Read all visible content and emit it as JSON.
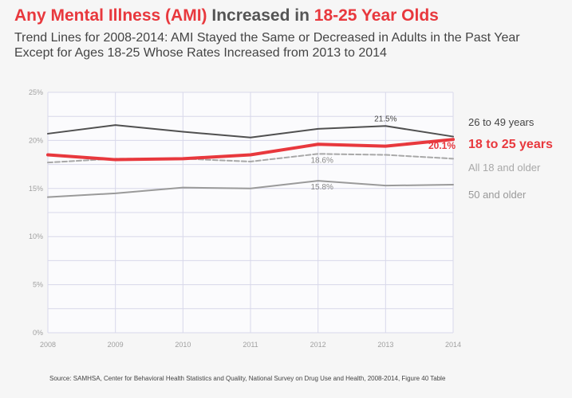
{
  "header": {
    "title_part1": "Any Mental Illness (AMI)",
    "title_part2": " Increased in ",
    "title_part3": "18-25 Year Olds",
    "subtitle_line1": "Trend Lines for 2008-2014: AMI Stayed the Same or Decreased in Adults in the Past Year",
    "subtitle_line2": "Except for Ages 18-25 Whose Rates Increased from 2013 to 2014"
  },
  "chart_data": {
    "type": "line",
    "x": [
      "2008",
      "2009",
      "2010",
      "2011",
      "2012",
      "2013",
      "2014"
    ],
    "ylim": [
      0,
      25
    ],
    "y_ticks": [
      0,
      5,
      10,
      15,
      20,
      25
    ],
    "y_tick_labels": [
      "0%",
      "5%",
      "10%",
      "15%",
      "20%",
      "25%"
    ],
    "grid": true,
    "legend_placement": "right",
    "series": [
      {
        "name": "26 to 49 years",
        "values": [
          20.7,
          21.6,
          20.9,
          20.3,
          21.2,
          21.5,
          20.4
        ],
        "color": "#505050",
        "width": 2,
        "dashed": false
      },
      {
        "name": "18 to 25 years",
        "values": [
          18.5,
          18.0,
          18.1,
          18.5,
          19.6,
          19.4,
          20.1
        ],
        "color": "#e8383d",
        "width": 4,
        "dashed": false
      },
      {
        "name": "All 18 and older",
        "values": [
          17.7,
          18.1,
          18.1,
          17.8,
          18.6,
          18.5,
          18.1
        ],
        "color": "#a8a8a8",
        "width": 2,
        "dashed": true
      },
      {
        "name": "50 and older",
        "values": [
          14.1,
          14.5,
          15.1,
          15.0,
          15.8,
          15.3,
          15.4
        ],
        "color": "#9a9a9a",
        "width": 2,
        "dashed": false
      }
    ],
    "legend_colors": [
      "#444444",
      "#e8383d",
      "#a8a8a8",
      "#999999"
    ],
    "annotations": [
      {
        "text": "21.5%",
        "x": "2013",
        "y": 21.5,
        "color": "#444444"
      },
      {
        "text": "20.1%",
        "x": "2014",
        "y": 20.1,
        "color": "#e8383d",
        "bold": true
      },
      {
        "text": "18.6%",
        "x": "2012",
        "y": 18.6,
        "color": "#888888"
      },
      {
        "text": "15.8%",
        "x": "2012",
        "y": 15.8,
        "color": "#888888"
      }
    ]
  },
  "footer": {
    "source": "Source: SAMHSA, Center for Behavioral Health Statistics and Quality, National Survey on Drug Use and Health, 2008-2014,   Figure 40 Table"
  }
}
